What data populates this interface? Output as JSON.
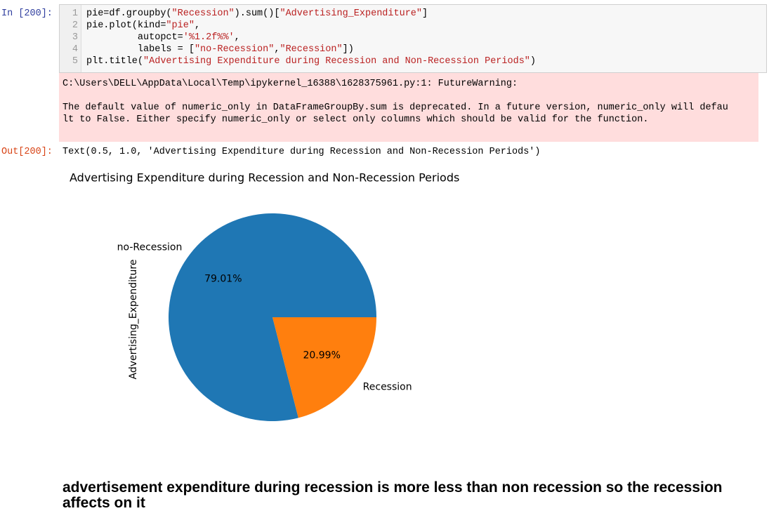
{
  "input_cell": {
    "prompt": "In [200]:",
    "lines": [
      {
        "number": 1,
        "code": "pie=df.groupby(\"Recession\").sum()[\"Advertising_Expenditure\"]"
      },
      {
        "number": 2,
        "code": "pie.plot(kind=\"pie\","
      },
      {
        "number": 3,
        "code": "         autopct='%1.2f%%',"
      },
      {
        "number": 4,
        "code": "         labels = [\"no-Recession\",\"Recession\"])"
      },
      {
        "number": 5,
        "code": "plt.title(\"Advertising Expenditure during Recession and Non-Recession Periods\")"
      }
    ]
  },
  "stderr": {
    "lines": [
      "C:\\Users\\DELL\\AppData\\Local\\Temp\\ipykernel_16388\\1628375961.py:1: FutureWarning:",
      "",
      "The default value of numeric_only in DataFrameGroupBy.sum is deprecated. In a future version, numeric_only will defau",
      "lt to False. Either specify numeric_only or select only columns which should be valid for the function."
    ]
  },
  "output": {
    "prompt": "Out[200]:",
    "text": "Text(0.5, 1.0, 'Advertising Expenditure during Recession and Non-Recession Periods')"
  },
  "chart_data": {
    "type": "pie",
    "title": "Advertising Expenditure during Recession and Non-Recession Periods",
    "ylabel": "Advertising_Expenditure",
    "categories": [
      "no-Recession",
      "Recession"
    ],
    "values": [
      79.01,
      20.99
    ],
    "value_labels": [
      "79.01%",
      "20.99%"
    ],
    "colors": [
      "#1f77b4",
      "#ff7f0e"
    ]
  },
  "markdown": {
    "text": "advertisement expenditure during recession is more less than non recession so the recession affects on it"
  }
}
